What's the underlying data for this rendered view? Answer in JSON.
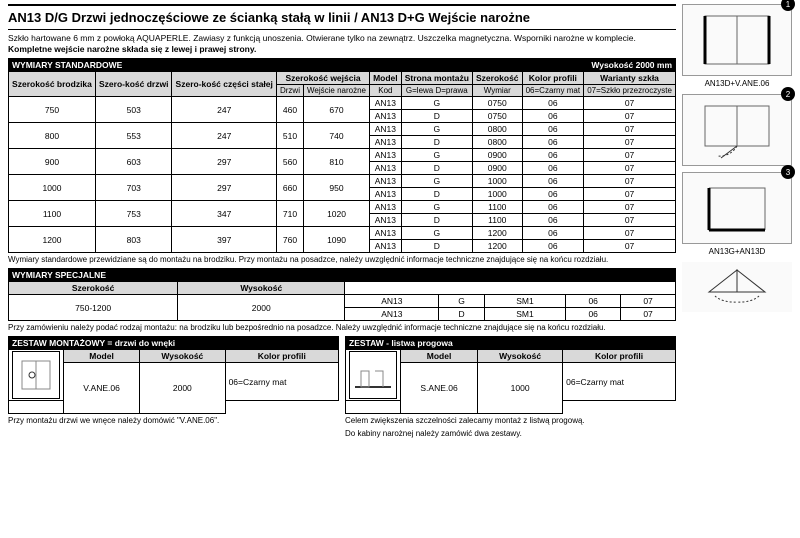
{
  "title": "AN13 D/G  Drzwi jednoczęściowe ze ścianką stałą w linii /  AN13 D+G  Wejście narożne",
  "desc_line1": "Szkło hartowane 6 mm z powłoką AQUAPERLE. Zawiasy z funkcją unoszenia. Otwierane tylko na zewnątrz. Uszczelka magnetyczna. Wsporniki narożne w komplecie.",
  "desc_line2": "Kompletne wejście narożne składa się z lewej i prawej strony.",
  "std": {
    "header_left": "WYMIARY STANDARDOWE",
    "header_right": "Wysokość 2000 mm",
    "cols": {
      "c1": "Szerokość brodzika",
      "c2": "Szero-kość drzwi",
      "c3": "Szero-kość części stałej",
      "c4": "Szerokość wejścia",
      "c4a": "Drzwi",
      "c4b": "Wejście narożne",
      "c5": "Model",
      "c5s": "Kod",
      "c6": "Strona montażu",
      "c6s": "G=lewa D=prawa",
      "c7": "Szerokość",
      "c7s": "Wymiar",
      "c8": "Kolor profili",
      "c8s": "06=Czarny mat",
      "c9": "Warianty szkła",
      "c9s": "07=Szkło przezroczyste"
    },
    "rows": [
      {
        "w": "750",
        "d": "503",
        "s": "247",
        "dd": "460",
        "dn": "670",
        "sz": "0750"
      },
      {
        "w": "800",
        "d": "553",
        "s": "247",
        "dd": "510",
        "dn": "740",
        "sz": "0800"
      },
      {
        "w": "900",
        "d": "603",
        "s": "297",
        "dd": "560",
        "dn": "810",
        "sz": "0900"
      },
      {
        "w": "1000",
        "d": "703",
        "s": "297",
        "dd": "660",
        "dn": "950",
        "sz": "1000"
      },
      {
        "w": "1100",
        "d": "753",
        "s": "347",
        "dd": "710",
        "dn": "1020",
        "sz": "1100"
      },
      {
        "w": "1200",
        "d": "803",
        "s": "397",
        "dd": "760",
        "dn": "1090",
        "sz": "1200"
      }
    ],
    "model": "AN13",
    "gd": [
      "G",
      "D"
    ],
    "kp": "06",
    "ws": "07"
  },
  "note_std": "Wymiary standardowe przewidziane są do montażu na brodziku. Przy montażu na posadzce, należy uwzględnić informacje techniczne znajdujące się na końcu rozdziału.",
  "spec": {
    "header": "WYMIARY SPECJALNE",
    "c1": "Szerokość",
    "c2": "Wysokość",
    "v1": "750-1200",
    "v2": "2000",
    "model": "AN13",
    "sz": "SM1",
    "kp": "06",
    "ws": "07",
    "gd": [
      "G",
      "D"
    ]
  },
  "note_spec": "Przy zamówieniu należy podać rodzaj montażu: na brodziku lub bezpośrednio na posadzce. Należy uwzględnić informacje techniczne znajdujące się na końcu rozdziału.",
  "k1": {
    "header": "ZESTAW MONTAŻOWY = drzwi do wnęki",
    "cols": [
      "Model",
      "Wysokość",
      "Kolor profili"
    ],
    "sub": "06=Czarny mat",
    "model": "V.ANE.06",
    "h": "2000",
    "note": "Przy montażu drzwi we wnęce należy domówić \"V.ANE.06\"."
  },
  "k2": {
    "header": "ZESTAW - listwa progowa",
    "cols": [
      "Model",
      "Wysokość",
      "Kolor profili"
    ],
    "sub": "06=Czarny mat",
    "model": "S.ANE.06",
    "h": "1000",
    "note1": "Celem zwiększenia szczelności zalecamy montaż z listwą progową.",
    "note2": "Do kabiny narożnej należy zamówić dwa zestawy."
  },
  "side": {
    "cap1": "AN13D+V.ANE.06",
    "cap2": "",
    "cap3": "AN13G+AN13D"
  }
}
